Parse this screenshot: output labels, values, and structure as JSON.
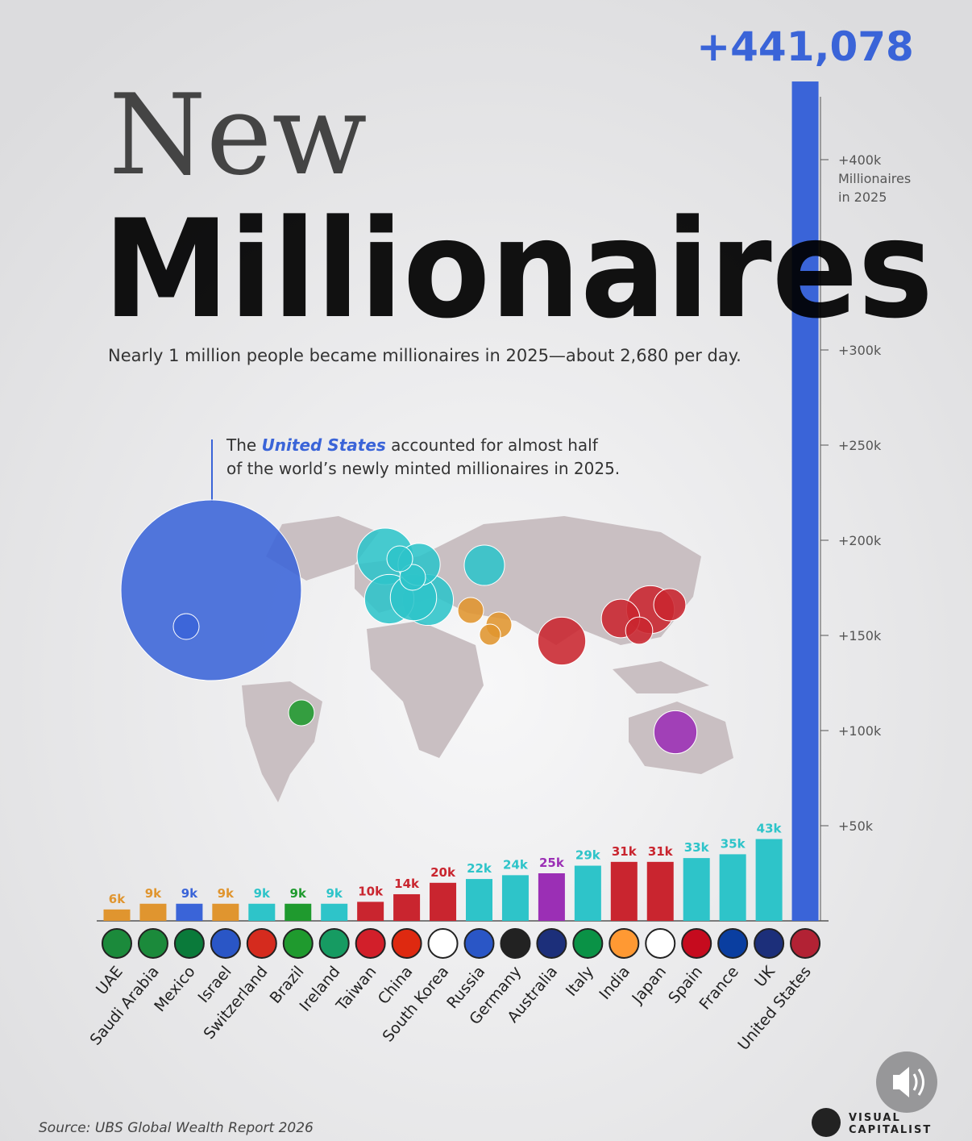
{
  "chart_data": {
    "type": "bar",
    "title_line1": "New",
    "title_line2": "Millionaires",
    "subtitle": "Nearly 1 million people became millionaires in 2025—about 2,680 per day.",
    "annotation": [
      "The",
      "United States",
      "accounted for almost half",
      "of the world’s newly minted millionaires in 2025."
    ],
    "axis_note": [
      "Millionaires",
      "in 2025"
    ],
    "source": "Source: UBS Global Wealth Report 2026",
    "brand": [
      "VISUAL",
      "CAPITALIST"
    ],
    "categories": [
      "UAE",
      "Saudi Arabia",
      "Mexico",
      "Israel",
      "Switzerland",
      "Brazil",
      "Ireland",
      "Taiwan",
      "China",
      "South Korea",
      "Russia",
      "Germany",
      "Australia",
      "Italy",
      "India",
      "Japan",
      "Spain",
      "France",
      "UK",
      "United States"
    ],
    "values": [
      6000,
      9000,
      9000,
      9000,
      9000,
      9000,
      9000,
      10000,
      14000,
      20000,
      22000,
      24000,
      25000,
      29000,
      31000,
      31000,
      33000,
      35000,
      43000,
      441078
    ],
    "value_labels": [
      "6k",
      "9k",
      "9k",
      "9k",
      "9k",
      "9k",
      "9k",
      "10k",
      "14k",
      "20k",
      "22k",
      "24k",
      "25k",
      "29k",
      "31k",
      "31k",
      "33k",
      "35k",
      "43k",
      "+441,078"
    ],
    "colors": [
      "#e0952f",
      "#e0952f",
      "#3a64d8",
      "#e0952f",
      "#2ec4c9",
      "#1f9a2e",
      "#2ec4c9",
      "#c9252f",
      "#c9252f",
      "#c9252f",
      "#2ec4c9",
      "#2ec4c9",
      "#9b2fb5",
      "#2ec4c9",
      "#c9252f",
      "#c9252f",
      "#2ec4c9",
      "#2ec4c9",
      "#2ec4c9",
      "#3a64d8"
    ],
    "ylim": [
      0,
      450000
    ],
    "yticks": [
      {
        "value": 50000,
        "label": "+50k"
      },
      {
        "value": 100000,
        "label": "+100k"
      },
      {
        "value": 150000,
        "label": "+150k"
      },
      {
        "value": 200000,
        "label": "+200k"
      },
      {
        "value": 250000,
        "label": "+250k"
      },
      {
        "value": 300000,
        "label": "+300k"
      },
      {
        "value": 400000,
        "label": "+400k"
      }
    ]
  }
}
